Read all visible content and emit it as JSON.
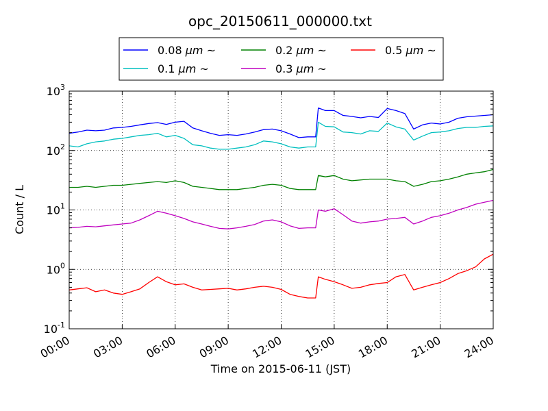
{
  "chart_data": {
    "type": "line",
    "title": "opc_20150611_000000.txt",
    "xlabel": "Time on 2015-06-11 (JST)",
    "ylabel": "Count / L",
    "x_unit": "hours",
    "xlim": [
      0,
      24
    ],
    "ylim": [
      0.1,
      1000
    ],
    "yscale": "log",
    "grid": true,
    "legend_position": "top (above plot area)",
    "x_ticks": [
      {
        "value": 0,
        "label": "00:00"
      },
      {
        "value": 3,
        "label": "03:00"
      },
      {
        "value": 6,
        "label": "06:00"
      },
      {
        "value": 9,
        "label": "09:00"
      },
      {
        "value": 12,
        "label": "12:00"
      },
      {
        "value": 15,
        "label": "15:00"
      },
      {
        "value": 18,
        "label": "18:00"
      },
      {
        "value": 21,
        "label": "21:00"
      },
      {
        "value": 24,
        "label": "24:00"
      }
    ],
    "y_ticks": [
      {
        "value": 0.1,
        "base": "10",
        "exp": "-1"
      },
      {
        "value": 1,
        "base": "10",
        "exp": "0"
      },
      {
        "value": 10,
        "base": "10",
        "exp": "1"
      },
      {
        "value": 100,
        "base": "10",
        "exp": "2"
      },
      {
        "value": 1000,
        "base": "10",
        "exp": "3"
      }
    ],
    "x": [
      0,
      0.5,
      1,
      1.5,
      2,
      2.5,
      3,
      3.5,
      4,
      4.5,
      5,
      5.5,
      6,
      6.5,
      7,
      7.5,
      8,
      8.5,
      9,
      9.5,
      10,
      10.5,
      11,
      11.5,
      12,
      12.5,
      13,
      13.5,
      13.95,
      14.1,
      14.5,
      15,
      15.5,
      16,
      16.5,
      17,
      17.5,
      18,
      18.5,
      19,
      19.5,
      20,
      20.5,
      21,
      21.5,
      22,
      22.5,
      23,
      23.5,
      24
    ],
    "series": [
      {
        "name": "0.08",
        "unit": "μm",
        "suffix": "~",
        "color": "#0000ff",
        "values": [
          195,
          205,
          220,
          215,
          220,
          240,
          245,
          255,
          270,
          285,
          295,
          275,
          300,
          310,
          240,
          215,
          195,
          180,
          185,
          180,
          190,
          205,
          225,
          230,
          215,
          190,
          165,
          170,
          170,
          520,
          470,
          470,
          390,
          375,
          355,
          375,
          360,
          510,
          470,
          420,
          230,
          270,
          290,
          280,
          300,
          350,
          370,
          380,
          390,
          400
        ]
      },
      {
        "name": "0.1",
        "unit": "μm",
        "suffix": "~",
        "color": "#00bfbf",
        "values": [
          120,
          115,
          130,
          140,
          145,
          155,
          160,
          170,
          180,
          185,
          195,
          170,
          180,
          160,
          125,
          120,
          110,
          105,
          105,
          110,
          115,
          125,
          145,
          140,
          130,
          115,
          110,
          115,
          115,
          300,
          255,
          250,
          205,
          200,
          190,
          215,
          210,
          290,
          250,
          230,
          150,
          175,
          200,
          205,
          215,
          235,
          245,
          245,
          255,
          260
        ]
      },
      {
        "name": "0.2",
        "unit": "μm",
        "suffix": "~",
        "color": "#008000",
        "values": [
          24,
          24,
          25,
          24,
          25,
          26,
          26,
          27,
          28,
          29,
          30,
          29,
          31,
          29,
          25,
          24,
          23,
          22,
          22,
          22,
          23,
          24,
          26,
          27,
          26,
          23,
          22,
          22,
          22,
          38,
          36,
          38,
          33,
          31,
          32,
          33,
          33,
          33,
          31,
          30,
          25,
          27,
          30,
          31,
          33,
          36,
          40,
          42,
          44,
          48
        ]
      },
      {
        "name": "0.3",
        "unit": "μm",
        "suffix": "~",
        "color": "#bf00bf",
        "values": [
          5.0,
          5.1,
          5.3,
          5.2,
          5.4,
          5.6,
          5.8,
          6.0,
          6.8,
          8.0,
          9.5,
          8.8,
          8.0,
          7.2,
          6.3,
          5.8,
          5.3,
          4.9,
          4.8,
          5.0,
          5.3,
          5.7,
          6.5,
          6.8,
          6.3,
          5.4,
          4.9,
          5.0,
          5.0,
          10.0,
          9.5,
          10.5,
          8.3,
          6.5,
          6.0,
          6.3,
          6.5,
          7.0,
          7.2,
          7.5,
          5.8,
          6.5,
          7.5,
          8.0,
          8.8,
          10.0,
          11.0,
          12.5,
          13.5,
          14.5
        ]
      },
      {
        "name": "0.5",
        "unit": "μm",
        "suffix": "~",
        "color": "#ff0000",
        "values": [
          0.45,
          0.47,
          0.49,
          0.42,
          0.45,
          0.4,
          0.38,
          0.42,
          0.47,
          0.6,
          0.75,
          0.62,
          0.55,
          0.57,
          0.5,
          0.45,
          0.46,
          0.47,
          0.48,
          0.45,
          0.47,
          0.5,
          0.52,
          0.5,
          0.46,
          0.38,
          0.35,
          0.33,
          0.33,
          0.75,
          0.68,
          0.62,
          0.55,
          0.48,
          0.5,
          0.55,
          0.58,
          0.6,
          0.75,
          0.82,
          0.45,
          0.5,
          0.55,
          0.6,
          0.7,
          0.85,
          0.95,
          1.1,
          1.5,
          1.8
        ]
      }
    ]
  }
}
